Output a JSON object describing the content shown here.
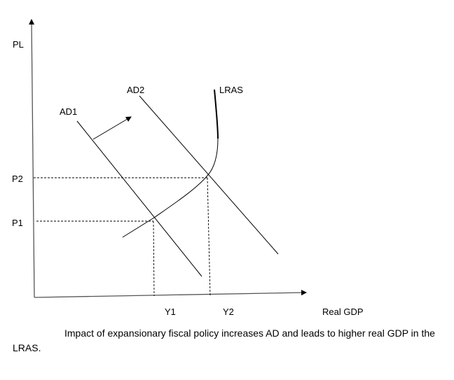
{
  "axes": {
    "y_label": "PL",
    "x_label": "Real GDP"
  },
  "curves": {
    "ad1": "AD1",
    "ad2": "AD2",
    "lras": "LRAS"
  },
  "price_levels": {
    "p1": "P1",
    "p2": "P2"
  },
  "outputs": {
    "y1": "Y1",
    "y2": "Y2"
  },
  "caption": {
    "line1": "Impact of expansionary fiscal policy increases AD and leads to higher real GDP in the",
    "line2": "LRAS."
  }
}
